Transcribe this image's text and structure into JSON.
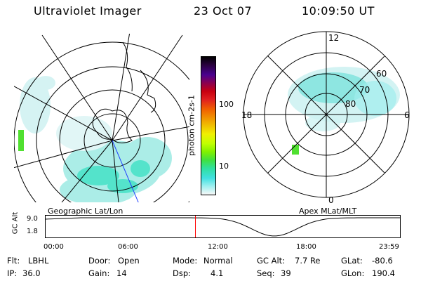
{
  "header": {
    "instrument": "Ultraviolet Imager",
    "date": "23 Oct 07",
    "time": "10:09:50 UT"
  },
  "left_panel": {
    "caption": "Geographic Lat/Lon"
  },
  "right_panel": {
    "caption": "Apex MLat/MLT",
    "mlt_labels": {
      "top": "12",
      "bottom": "0",
      "left": "18",
      "right": "6"
    },
    "lat_labels": [
      "60",
      "70",
      "80"
    ]
  },
  "colorbar": {
    "unit_label": "photon cm-2s-1",
    "ticks": [
      "100",
      "10"
    ],
    "colors": [
      "#000000",
      "#2a0040",
      "#4a0090",
      "#8a0050",
      "#c80010",
      "#e02020",
      "#f06000",
      "#f09000",
      "#f0c000",
      "#f0f000",
      "#c0ff00",
      "#80f000",
      "#40e040",
      "#30e0a0",
      "#40e0e0",
      "#a0f0f0",
      "#f8f8f8"
    ]
  },
  "timeline": {
    "ylabel": "GC Alt",
    "ytick_top": "9.0",
    "ytick_bottom": "1.8",
    "xticks": [
      "00:00",
      "06:00",
      "12:00",
      "18:00",
      "23:59"
    ],
    "marker_color": "#ff0000",
    "current_fraction": 0.423
  },
  "info": {
    "flt_label": "Flt:",
    "flt_value": "LBHL",
    "ip_label": "IP:",
    "ip_value": "36.0",
    "door_label": "Door:",
    "door_value": "Open",
    "gain_label": "Gain:",
    "gain_value": "14",
    "mode_label": "Mode:",
    "mode_value": "Normal",
    "dsp_label": "Dsp:",
    "dsp_value": "4.1",
    "gcalt_label": "GC Alt:",
    "gcalt_value": "7.7 Re",
    "seq_label": "Seq:",
    "seq_value": "39",
    "glat_label": "GLat:",
    "glat_value": "-80.6",
    "glon_label": "GLon:",
    "glon_value": "190.4"
  }
}
